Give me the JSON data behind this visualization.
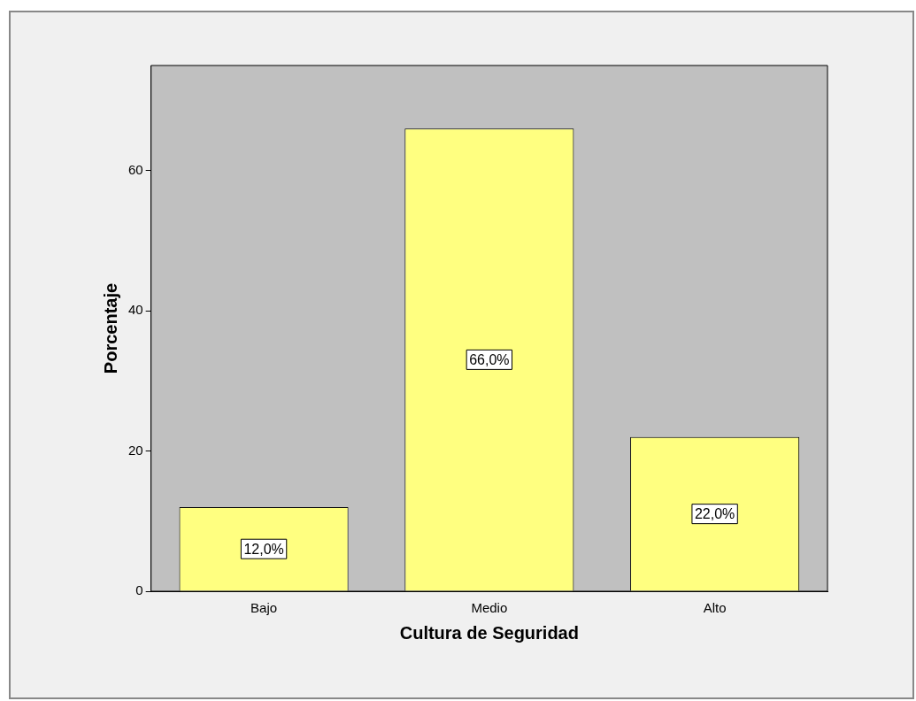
{
  "chart_data": {
    "type": "bar",
    "xlabel": "Cultura de Seguridad",
    "ylabel": "Porcentaje",
    "categories": [
      "Bajo",
      "Medio",
      "Alto"
    ],
    "values": [
      12,
      66,
      22
    ],
    "value_labels": [
      "12,0%",
      "66,0%",
      "22,0%"
    ],
    "color": "#ffff80",
    "ylim": [
      0,
      75
    ],
    "yticks": [
      0,
      20,
      40,
      60
    ],
    "grid": false,
    "legend": false
  }
}
